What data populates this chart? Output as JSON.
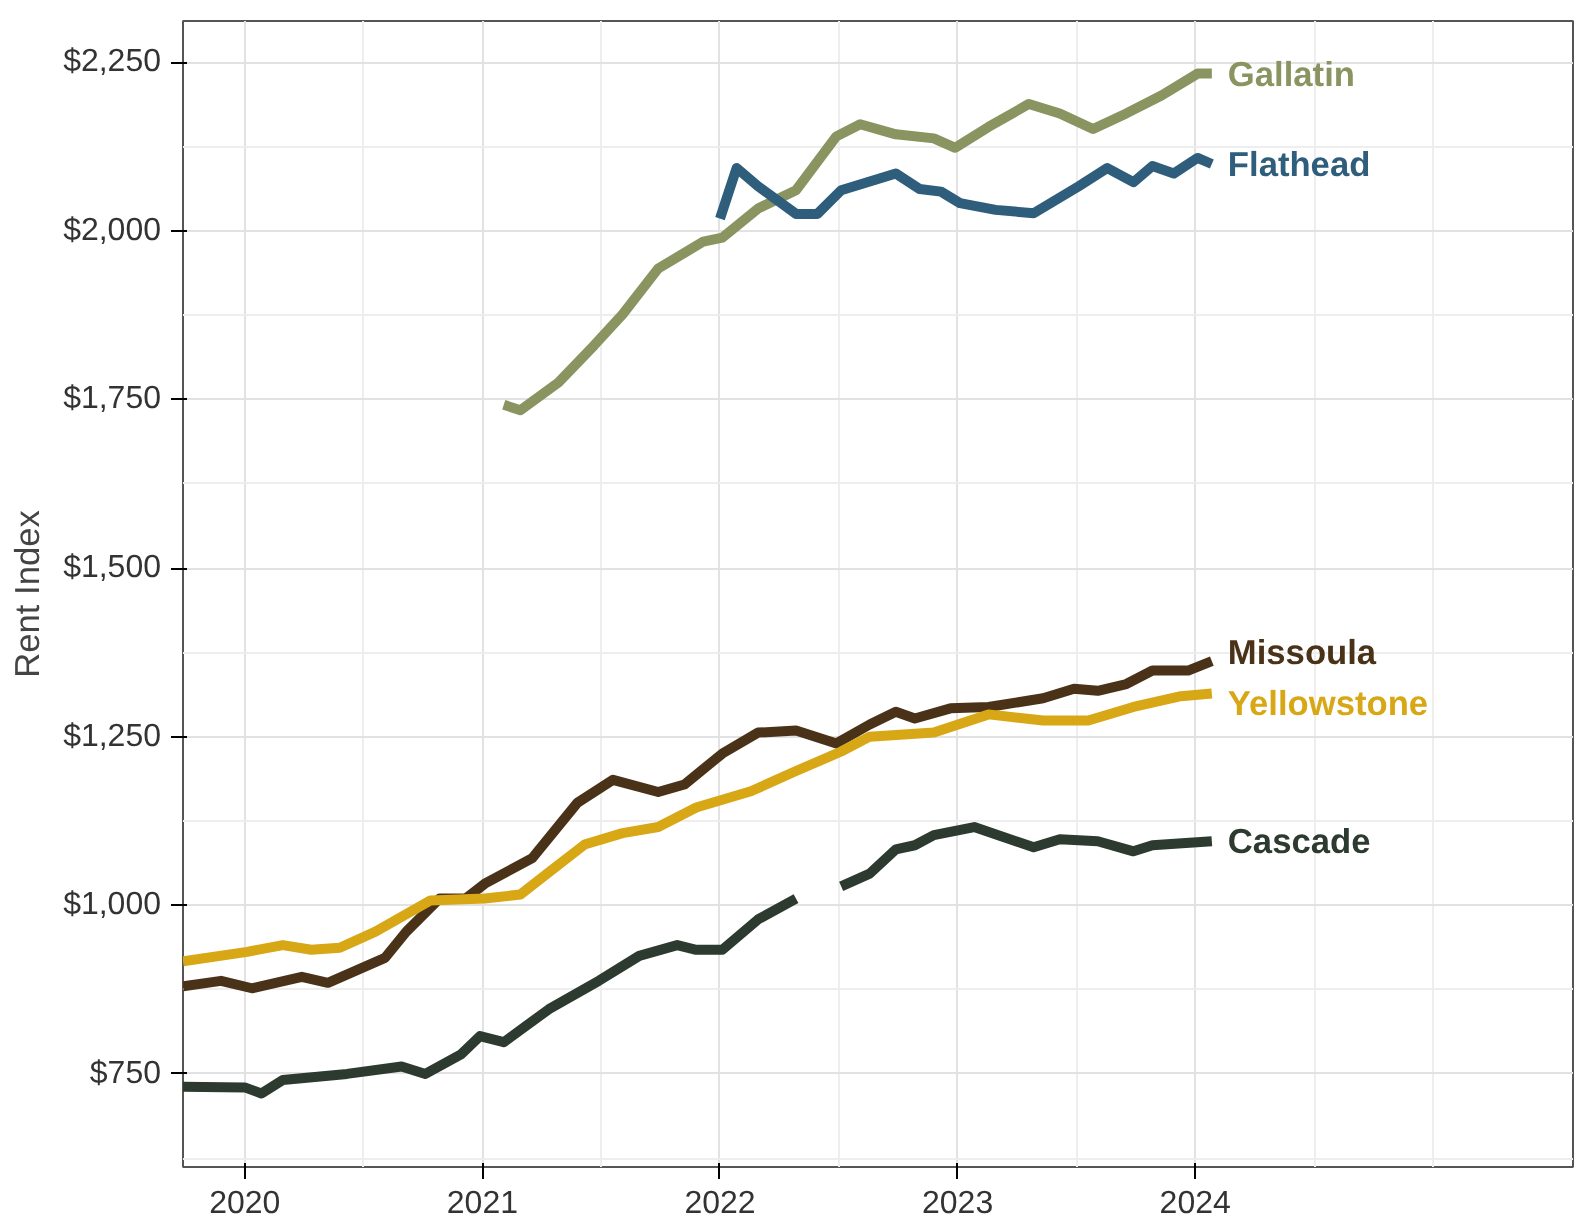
{
  "chart_data": {
    "type": "line",
    "ylabel": "Rent Index",
    "xlim": [
      2019.74,
      2025.59
    ],
    "ylim": [
      612,
      2311
    ],
    "xticks": [
      2020,
      2021,
      2022,
      2023,
      2024
    ],
    "yticks": [
      {
        "value": 750,
        "label": "$750"
      },
      {
        "value": 1000,
        "label": "$1,000"
      },
      {
        "value": 1250,
        "label": "$1,250"
      },
      {
        "value": 1500,
        "label": "$1,500"
      },
      {
        "value": 1750,
        "label": "$1,750"
      },
      {
        "value": 2000,
        "label": "$2,000"
      },
      {
        "value": 2250,
        "label": "$2,250"
      }
    ],
    "grid": true,
    "line_style": "solid",
    "marker": "none",
    "series": [
      {
        "name": "Gallatin",
        "color": "#8a9461",
        "x": [
          2021.09,
          2021.16,
          2021.32,
          2021.47,
          2021.59,
          2021.74,
          2021.93,
          2022.01,
          2022.16,
          2022.32,
          2022.49,
          2022.59,
          2022.74,
          2022.9,
          2022.99,
          2023.13,
          2023.3,
          2023.43,
          2023.57,
          2023.71,
          2023.86,
          2024.01,
          2024.07
        ],
        "values": [
          1742,
          1734,
          1775,
          1830,
          1876,
          1944,
          1984,
          1990,
          2033,
          2060,
          2140,
          2158,
          2143,
          2137,
          2123,
          2154,
          2188,
          2174,
          2151,
          2174,
          2201,
          2233,
          2233
        ]
      },
      {
        "name": "Flathead",
        "color": "#2f5d7c",
        "x": [
          2022.0,
          2022.07,
          2022.16,
          2022.32,
          2022.41,
          2022.51,
          2022.74,
          2022.84,
          2022.93,
          2023.01,
          2023.16,
          2023.32,
          2023.51,
          2023.63,
          2023.74,
          2023.82,
          2023.91,
          2024.01,
          2024.07
        ],
        "values": [
          2018,
          2093,
          2066,
          2025,
          2025,
          2060,
          2085,
          2062,
          2058,
          2041,
          2031,
          2026,
          2066,
          2093,
          2072,
          2096,
          2085,
          2108,
          2099
        ]
      },
      {
        "name": "Missoula",
        "color": "#4a3218",
        "x": [
          2019.74,
          2019.9,
          2020.03,
          2020.24,
          2020.35,
          2020.59,
          2020.68,
          2020.82,
          2020.93,
          2021.01,
          2021.21,
          2021.4,
          2021.55,
          2021.74,
          2021.85,
          2022.01,
          2022.16,
          2022.32,
          2022.49,
          2022.63,
          2022.74,
          2022.82,
          2022.97,
          2023.13,
          2023.36,
          2023.49,
          2023.59,
          2023.71,
          2023.82,
          2023.97,
          2024.07
        ],
        "values": [
          880,
          888,
          877,
          894,
          885,
          922,
          961,
          1010,
          1010,
          1032,
          1070,
          1152,
          1186,
          1168,
          1179,
          1225,
          1256,
          1259,
          1240,
          1268,
          1287,
          1277,
          1292,
          1294,
          1307,
          1321,
          1318,
          1328,
          1348,
          1348,
          1362
        ]
      },
      {
        "name": "Yellowstone",
        "color": "#d8a716",
        "x": [
          2019.74,
          2020.01,
          2020.16,
          2020.28,
          2020.4,
          2020.55,
          2020.78,
          2021.01,
          2021.16,
          2021.28,
          2021.43,
          2021.59,
          2021.74,
          2021.9,
          2022.13,
          2022.32,
          2022.51,
          2022.63,
          2022.9,
          2023.13,
          2023.36,
          2023.55,
          2023.74,
          2023.94,
          2024.07
        ],
        "values": [
          917,
          931,
          941,
          934,
          937,
          961,
          1007,
          1010,
          1016,
          1049,
          1090,
          1107,
          1116,
          1145,
          1169,
          1199,
          1228,
          1250,
          1256,
          1283,
          1274,
          1274,
          1294,
          1310,
          1314
        ]
      },
      {
        "name": "Cascade",
        "color": "#2c3a30",
        "x": [
          2019.74,
          2020.0,
          2020.07,
          2020.16,
          2020.43,
          2020.66,
          2020.76,
          2020.91,
          2020.99,
          2021.09,
          2021.16,
          2021.28,
          2021.49,
          2021.66,
          2021.82,
          2021.9,
          2022.01,
          2022.16,
          2022.32,
          2022.41,
          2022.51,
          2022.63,
          2022.74,
          2022.82,
          2022.9,
          2023.07,
          2023.32,
          2023.43,
          2023.59,
          2023.74,
          2023.82,
          2024.07
        ],
        "values": [
          731,
          730,
          721,
          741,
          750,
          761,
          750,
          779,
          806,
          797,
          815,
          846,
          888,
          925,
          941,
          934,
          934,
          979,
          1010,
          null,
          1028,
          1047,
          1083,
          1089,
          1104,
          1116,
          1086,
          1098,
          1095,
          1080,
          1089,
          1095
        ]
      }
    ]
  }
}
